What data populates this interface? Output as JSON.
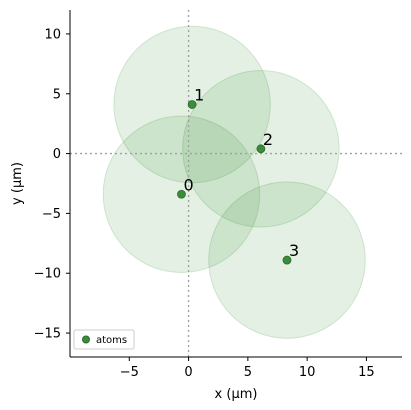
{
  "chart_data": {
    "type": "scatter",
    "xlabel": "x (μm)",
    "ylabel": "y (μm)",
    "xlim": [
      -10,
      18
    ],
    "ylim": [
      -17,
      12
    ],
    "xticks": [
      -5,
      0,
      5,
      10,
      15
    ],
    "yticks": [
      -15,
      -10,
      -5,
      0,
      5,
      10
    ],
    "reference_lines": {
      "x": 0,
      "y": 0,
      "style": "dotted"
    },
    "blockade_radius": 6.6,
    "colors": {
      "atom": "#3a8c3a",
      "atom_edge": "#2e6b2e",
      "circle_fill": "#2e8b2e",
      "circle_stroke": "#2e8b2e",
      "reference_line": "#a0a0a0"
    },
    "legend": {
      "placement": "bottom-left",
      "label": "atoms"
    },
    "points": [
      {
        "label": "0",
        "x": -0.6,
        "y": -3.4
      },
      {
        "label": "1",
        "x": 0.3,
        "y": 4.1
      },
      {
        "label": "2",
        "x": 6.1,
        "y": 0.4
      },
      {
        "label": "3",
        "x": 8.3,
        "y": -8.9
      }
    ]
  }
}
